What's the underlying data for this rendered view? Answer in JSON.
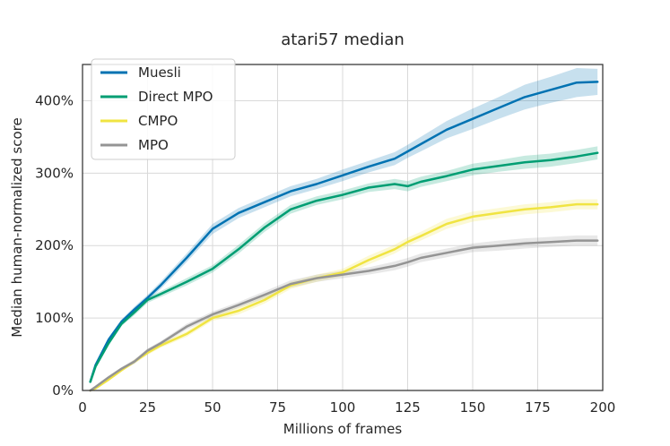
{
  "chart_data": {
    "type": "line",
    "title": "atari57 median",
    "xlabel": "Millions of frames",
    "ylabel": "Median human-normalized score",
    "xlim": [
      0,
      200
    ],
    "ylim": [
      0,
      450
    ],
    "x_ticks": [
      0,
      25,
      50,
      75,
      100,
      125,
      150,
      175,
      200
    ],
    "y_ticks": [
      0,
      100,
      200,
      300,
      400
    ],
    "x_tick_labels": [
      "0",
      "25",
      "50",
      "75",
      "100",
      "125",
      "150",
      "175",
      "200"
    ],
    "y_tick_labels": [
      "0%",
      "100%",
      "200%",
      "300%",
      "400%"
    ],
    "grid": true,
    "legend_position": "top-left",
    "x": [
      3,
      5,
      10,
      15,
      20,
      25,
      30,
      40,
      50,
      60,
      70,
      80,
      90,
      100,
      110,
      120,
      125,
      130,
      140,
      150,
      160,
      170,
      180,
      190,
      198
    ],
    "series": [
      {
        "name": "Muesli",
        "color": "#0072b2",
        "values": [
          12,
          35,
          70,
          95,
          112,
          128,
          145,
          183,
          223,
          245,
          260,
          275,
          285,
          297,
          309,
          320,
          330,
          340,
          360,
          375,
          390,
          405,
          415,
          425,
          426
        ],
        "band": [
          2,
          2,
          3,
          3,
          4,
          4,
          5,
          6,
          7,
          7,
          7,
          7,
          7,
          8,
          8,
          9,
          9,
          10,
          12,
          14,
          15,
          17,
          18,
          20,
          18
        ]
      },
      {
        "name": "Direct MPO",
        "color": "#009e73",
        "values": [
          12,
          33,
          65,
          92,
          108,
          125,
          133,
          150,
          168,
          195,
          225,
          250,
          262,
          270,
          280,
          285,
          282,
          288,
          296,
          305,
          310,
          315,
          318,
          323,
          328
        ],
        "band": [
          2,
          2,
          3,
          3,
          4,
          4,
          4,
          5,
          5,
          6,
          6,
          6,
          6,
          6,
          6,
          7,
          7,
          7,
          7,
          8,
          8,
          9,
          9,
          9,
          9
        ]
      },
      {
        "name": "CMPO",
        "color": "#f0e442",
        "values": [
          0,
          3,
          15,
          28,
          40,
          52,
          62,
          78,
          100,
          110,
          125,
          145,
          155,
          163,
          180,
          195,
          205,
          213,
          230,
          240,
          245,
          250,
          253,
          257,
          257
        ],
        "band": [
          1,
          1,
          2,
          2,
          3,
          3,
          3,
          4,
          4,
          5,
          5,
          5,
          5,
          5,
          6,
          6,
          6,
          6,
          7,
          7,
          7,
          7,
          7,
          7,
          7
        ]
      },
      {
        "name": "MPO",
        "color": "#949494",
        "values": [
          0,
          5,
          18,
          30,
          40,
          55,
          65,
          88,
          105,
          118,
          132,
          147,
          155,
          160,
          165,
          172,
          177,
          183,
          190,
          197,
          200,
          203,
          205,
          207,
          207
        ],
        "band": [
          1,
          1,
          2,
          2,
          3,
          3,
          3,
          4,
          4,
          4,
          5,
          5,
          5,
          5,
          5,
          6,
          6,
          6,
          6,
          6,
          7,
          7,
          7,
          7,
          7
        ]
      }
    ]
  }
}
